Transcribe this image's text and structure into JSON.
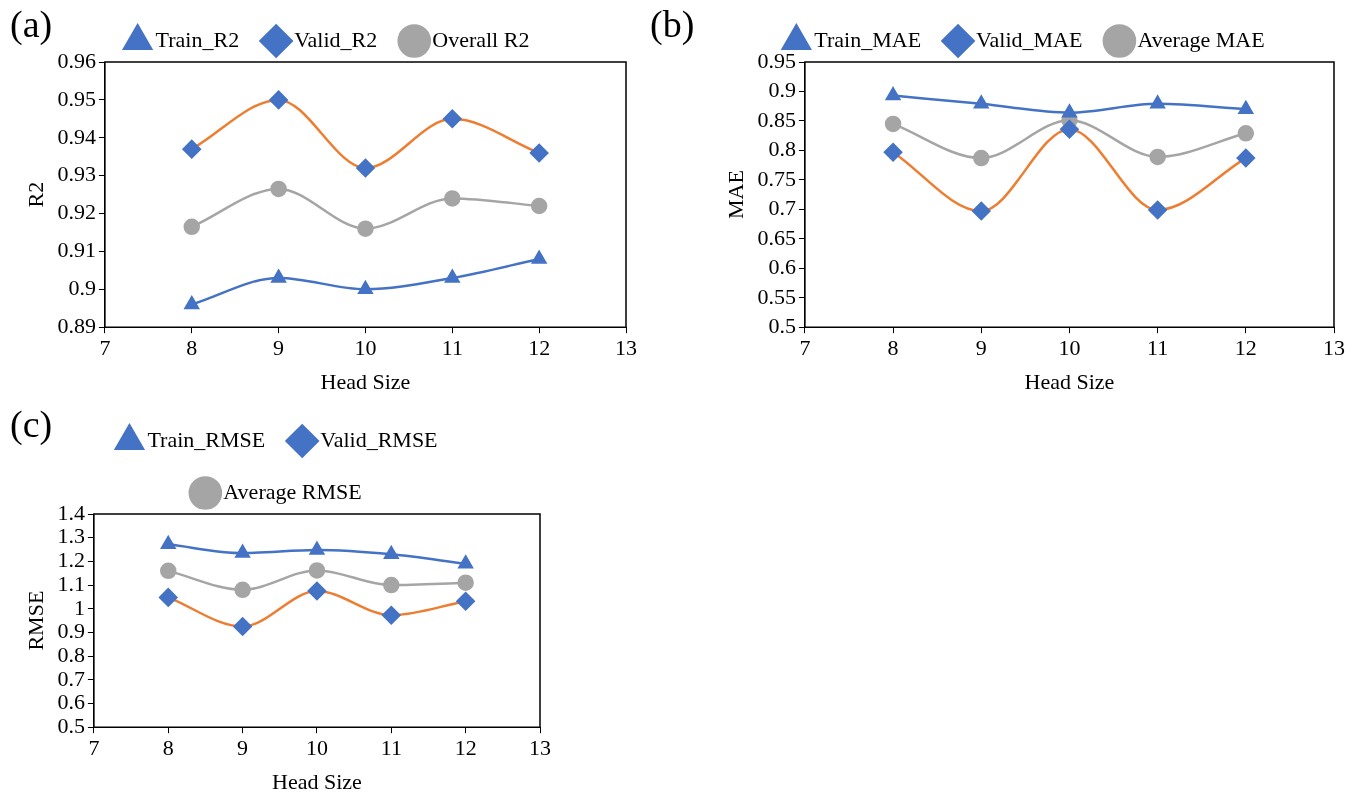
{
  "chart_data": [
    {
      "type": "line",
      "title": "(a)",
      "xlabel": "Head Size",
      "ylabel": "R2",
      "x": [
        8,
        9,
        10,
        11,
        12
      ],
      "xlim": [
        7,
        13
      ],
      "xticks": [
        7,
        8,
        9,
        10,
        11,
        12,
        13
      ],
      "ylim": [
        0.89,
        0.96
      ],
      "yticks": [
        0.89,
        0.9,
        0.91,
        0.92,
        0.93,
        0.94,
        0.95,
        0.96
      ],
      "grid": false,
      "legend": "top",
      "series": [
        {
          "name": "Train_R2",
          "color": "#4472c4",
          "marker": "triangle",
          "values": [
            0.896,
            0.903,
            0.9,
            0.903,
            0.908
          ]
        },
        {
          "name": "Valid_R2",
          "color": "#ed7d31",
          "colors": [
            "#4472c4",
            "#4472c4",
            "#4472c4",
            "#4472c4",
            "#4472c4"
          ],
          "marker": "diamond",
          "values": [
            0.937,
            0.95,
            0.932,
            0.945,
            0.936
          ]
        },
        {
          "name": "Overall R2",
          "color": "#a5a5a5",
          "marker": "circle",
          "values": [
            0.9165,
            0.9265,
            0.916,
            0.924,
            0.922
          ]
        }
      ]
    },
    {
      "type": "line",
      "title": "(b)",
      "xlabel": "Head Size",
      "ylabel": "MAE",
      "x": [
        8,
        9,
        10,
        11,
        12
      ],
      "xlim": [
        7,
        13
      ],
      "xticks": [
        7,
        8,
        9,
        10,
        11,
        12,
        13
      ],
      "ylim": [
        0.5,
        0.95
      ],
      "yticks": [
        0.5,
        0.55,
        0.6,
        0.65,
        0.7,
        0.75,
        0.8,
        0.85,
        0.9,
        0.95
      ],
      "grid": false,
      "legend": "top",
      "series": [
        {
          "name": "Train_MAE",
          "color": "#4472c4",
          "marker": "triangle",
          "values": [
            0.893,
            0.879,
            0.864,
            0.879,
            0.87
          ]
        },
        {
          "name": "Valid_MAE",
          "color": "#ed7d31",
          "colors": [
            "#4472c4",
            "#4472c4",
            "#4472c4",
            "#4472c4",
            "#4472c4"
          ],
          "marker": "diamond",
          "values": [
            0.797,
            0.697,
            0.836,
            0.699,
            0.787
          ]
        },
        {
          "name": "Average MAE",
          "color": "#a5a5a5",
          "marker": "circle",
          "values": [
            0.845,
            0.787,
            0.851,
            0.789,
            0.829
          ]
        }
      ]
    },
    {
      "type": "line",
      "title": "(c)",
      "xlabel": "Head Size",
      "ylabel": "RMSE",
      "x": [
        8,
        9,
        10,
        11,
        12
      ],
      "xlim": [
        7,
        13
      ],
      "xticks": [
        7,
        8,
        9,
        10,
        11,
        12,
        13
      ],
      "ylim": [
        0.5,
        1.4
      ],
      "yticks": [
        0.5,
        0.6,
        0.7,
        0.8,
        0.9,
        1,
        1.1,
        1.2,
        1.3,
        1.4
      ],
      "grid": false,
      "legend": "top",
      "series": [
        {
          "name": "Train_RMSE",
          "color": "#4472c4",
          "marker": "triangle",
          "values": [
            1.272,
            1.235,
            1.248,
            1.23,
            1.19
          ]
        },
        {
          "name": "Valid_RMSE",
          "color": "#ed7d31",
          "colors": [
            "#4472c4",
            "#4472c4",
            "#4472c4",
            "#4472c4",
            "#4472c4"
          ],
          "marker": "diamond",
          "values": [
            1.048,
            0.925,
            1.075,
            0.973,
            1.032
          ]
        },
        {
          "name": "Average RMSE",
          "color": "#a5a5a5",
          "marker": "circle",
          "values": [
            1.16,
            1.08,
            1.162,
            1.1,
            1.11
          ]
        }
      ]
    }
  ]
}
